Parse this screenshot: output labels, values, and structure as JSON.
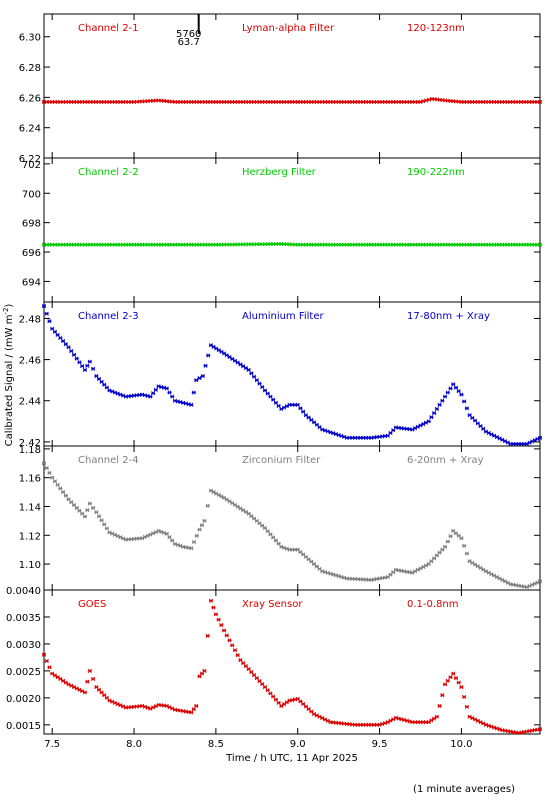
{
  "chart_data": {
    "type": "scatter",
    "xlabel": "Time / h UTC, 11 Apr 2025",
    "ylabel": "Calibrated Signal / (mW m",
    "ylabel_sup": "-2",
    "ylabel_end": ")",
    "footnote": "(1 minute averages)",
    "xlim": [
      7.45,
      10.48
    ],
    "xticks": [
      7.5,
      8.0,
      8.5,
      9.0,
      9.5,
      10.0
    ],
    "xtick_labels": [
      "7.5",
      "8.0",
      "8.5",
      "9.0",
      "9.5",
      "10.0"
    ],
    "marker_annotation": {
      "x": 8.45,
      "top": "5760",
      "bottom": "63.7"
    },
    "panels": [
      {
        "name": "Channel 2-1",
        "filter": "Lyman-alpha Filter",
        "band": "120-123nm",
        "color": "#dd0000",
        "ylim": [
          6.22,
          6.315
        ],
        "yticks": [
          6.22,
          6.24,
          6.26,
          6.28,
          6.3
        ],
        "ytick_labels": [
          "6.22",
          "6.24",
          "6.26",
          "6.28",
          "6.30"
        ],
        "points": [
          [
            7.45,
            6.257
          ],
          [
            7.8,
            6.257
          ],
          [
            8.0,
            6.257
          ],
          [
            8.15,
            6.258
          ],
          [
            8.25,
            6.257
          ],
          [
            8.5,
            6.257
          ],
          [
            9.0,
            6.257
          ],
          [
            9.5,
            6.257
          ],
          [
            9.75,
            6.257
          ],
          [
            9.82,
            6.259
          ],
          [
            9.9,
            6.258
          ],
          [
            10.0,
            6.257
          ],
          [
            10.48,
            6.257
          ]
        ]
      },
      {
        "name": "Channel 2-2",
        "filter": "Herzberg Filter",
        "band": "190-222nm",
        "color": "#00cc00",
        "ylim": [
          692.6,
          702.4
        ],
        "yticks": [
          694,
          696,
          698,
          700,
          702
        ],
        "ytick_labels": [
          "694",
          "696",
          "698",
          "700",
          "702"
        ],
        "points": [
          [
            7.45,
            696.5
          ],
          [
            8.0,
            696.5
          ],
          [
            8.5,
            696.5
          ],
          [
            8.9,
            696.55
          ],
          [
            9.0,
            696.5
          ],
          [
            9.5,
            696.5
          ],
          [
            10.0,
            696.5
          ],
          [
            10.48,
            696.5
          ]
        ]
      },
      {
        "name": "Channel 2-3",
        "filter": "Aluminium Filter",
        "band": "17-80nm + Xray",
        "color": "#0000cc",
        "ylim": [
          2.418,
          2.488
        ],
        "yticks": [
          2.42,
          2.44,
          2.46,
          2.48
        ],
        "ytick_labels": [
          "2.42",
          "2.44",
          "2.46",
          "2.48"
        ],
        "points": [
          [
            7.45,
            2.486
          ],
          [
            7.5,
            2.475
          ],
          [
            7.6,
            2.466
          ],
          [
            7.7,
            2.455
          ],
          [
            7.73,
            2.459
          ],
          [
            7.77,
            2.452
          ],
          [
            7.85,
            2.445
          ],
          [
            7.95,
            2.442
          ],
          [
            8.05,
            2.443
          ],
          [
            8.1,
            2.442
          ],
          [
            8.15,
            2.447
          ],
          [
            8.2,
            2.446
          ],
          [
            8.25,
            2.44
          ],
          [
            8.3,
            2.439
          ],
          [
            8.35,
            2.438
          ],
          [
            8.38,
            2.45
          ],
          [
            8.42,
            2.452
          ],
          [
            8.47,
            2.467
          ],
          [
            8.55,
            2.463
          ],
          [
            8.7,
            2.455
          ],
          [
            8.8,
            2.445
          ],
          [
            8.9,
            2.436
          ],
          [
            8.95,
            2.438
          ],
          [
            9.0,
            2.438
          ],
          [
            9.05,
            2.433
          ],
          [
            9.15,
            2.426
          ],
          [
            9.3,
            2.422
          ],
          [
            9.45,
            2.422
          ],
          [
            9.55,
            2.423
          ],
          [
            9.6,
            2.427
          ],
          [
            9.7,
            2.426
          ],
          [
            9.8,
            2.43
          ],
          [
            9.9,
            2.442
          ],
          [
            9.95,
            2.448
          ],
          [
            10.0,
            2.443
          ],
          [
            10.05,
            2.433
          ],
          [
            10.15,
            2.425
          ],
          [
            10.3,
            2.419
          ],
          [
            10.4,
            2.419
          ],
          [
            10.48,
            2.422
          ]
        ]
      },
      {
        "name": "Channel 2-4",
        "filter": "Zirconium Filter",
        "band": "6-20nm + Xray",
        "color": "#808080",
        "ylim": [
          1.082,
          1.182
        ],
        "yticks": [
          1.1,
          1.12,
          1.14,
          1.16,
          1.18
        ],
        "ytick_labels": [
          "1.10",
          "1.12",
          "1.14",
          "1.16",
          "1.18"
        ],
        "points": [
          [
            7.45,
            1.17
          ],
          [
            7.5,
            1.16
          ],
          [
            7.6,
            1.145
          ],
          [
            7.7,
            1.133
          ],
          [
            7.73,
            1.142
          ],
          [
            7.77,
            1.136
          ],
          [
            7.85,
            1.122
          ],
          [
            7.95,
            1.117
          ],
          [
            8.05,
            1.118
          ],
          [
            8.15,
            1.123
          ],
          [
            8.2,
            1.121
          ],
          [
            8.25,
            1.114
          ],
          [
            8.3,
            1.112
          ],
          [
            8.35,
            1.111
          ],
          [
            8.4,
            1.124
          ],
          [
            8.43,
            1.13
          ],
          [
            8.47,
            1.151
          ],
          [
            8.55,
            1.146
          ],
          [
            8.7,
            1.135
          ],
          [
            8.8,
            1.125
          ],
          [
            8.9,
            1.112
          ],
          [
            8.95,
            1.11
          ],
          [
            9.0,
            1.11
          ],
          [
            9.05,
            1.105
          ],
          [
            9.15,
            1.095
          ],
          [
            9.3,
            1.09
          ],
          [
            9.45,
            1.089
          ],
          [
            9.55,
            1.091
          ],
          [
            9.6,
            1.096
          ],
          [
            9.7,
            1.094
          ],
          [
            9.8,
            1.1
          ],
          [
            9.9,
            1.112
          ],
          [
            9.95,
            1.123
          ],
          [
            10.0,
            1.118
          ],
          [
            10.05,
            1.102
          ],
          [
            10.15,
            1.095
          ],
          [
            10.3,
            1.086
          ],
          [
            10.4,
            1.084
          ],
          [
            10.48,
            1.088
          ]
        ]
      },
      {
        "name": "GOES",
        "filter": "Xray Sensor",
        "band": "0.1-0.8nm",
        "color": "#dd0000",
        "ylim": [
          0.00133,
          0.004
        ],
        "yticks": [
          0.0015,
          0.002,
          0.0025,
          0.003,
          0.0035,
          0.004
        ],
        "ytick_labels": [
          "0.0015",
          "0.0020",
          "0.0025",
          "0.0030",
          "0.0035",
          "0.0040"
        ],
        "points": [
          [
            7.45,
            0.0028
          ],
          [
            7.5,
            0.00245
          ],
          [
            7.6,
            0.00225
          ],
          [
            7.7,
            0.0021
          ],
          [
            7.73,
            0.0025
          ],
          [
            7.77,
            0.0022
          ],
          [
            7.85,
            0.00195
          ],
          [
            7.95,
            0.00182
          ],
          [
            8.05,
            0.00185
          ],
          [
            8.1,
            0.0018
          ],
          [
            8.15,
            0.00187
          ],
          [
            8.2,
            0.00185
          ],
          [
            8.25,
            0.00178
          ],
          [
            8.35,
            0.00173
          ],
          [
            8.38,
            0.00185
          ],
          [
            8.4,
            0.0024
          ],
          [
            8.43,
            0.0025
          ],
          [
            8.47,
            0.0038
          ],
          [
            8.5,
            0.00355
          ],
          [
            8.55,
            0.00325
          ],
          [
            8.65,
            0.0027
          ],
          [
            8.8,
            0.0022
          ],
          [
            8.9,
            0.00185
          ],
          [
            8.95,
            0.00195
          ],
          [
            9.0,
            0.00198
          ],
          [
            9.1,
            0.0017
          ],
          [
            9.2,
            0.00155
          ],
          [
            9.35,
            0.0015
          ],
          [
            9.5,
            0.0015
          ],
          [
            9.55,
            0.00155
          ],
          [
            9.6,
            0.00163
          ],
          [
            9.7,
            0.00155
          ],
          [
            9.8,
            0.00155
          ],
          [
            9.85,
            0.00165
          ],
          [
            9.9,
            0.00225
          ],
          [
            9.95,
            0.00245
          ],
          [
            10.0,
            0.0022
          ],
          [
            10.05,
            0.00165
          ],
          [
            10.15,
            0.0015
          ],
          [
            10.25,
            0.0014
          ],
          [
            10.35,
            0.00135
          ],
          [
            10.48,
            0.00142
          ]
        ]
      }
    ]
  }
}
